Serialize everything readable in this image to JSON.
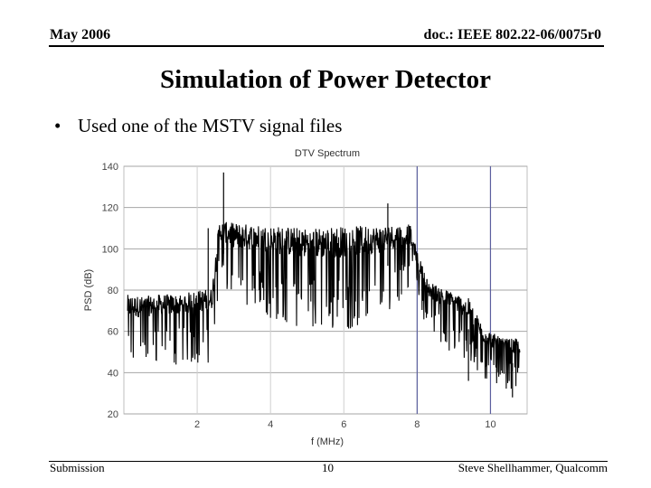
{
  "header": {
    "date": "May 2006",
    "doc_id": "doc.: IEEE 802.22-06/0075r0"
  },
  "title": "Simulation of Power Detector",
  "bullets": [
    "Used one of the MSTV signal files"
  ],
  "chart_data": {
    "type": "line",
    "title": "DTV Spectrum",
    "xlabel": "f (MHz)",
    "ylabel": "PSD (dB)",
    "xlim": [
      0,
      11
    ],
    "ylim": [
      20,
      140
    ],
    "xticks": [
      "2",
      "4",
      "6",
      "8",
      "10"
    ],
    "yticks": [
      "20",
      "40",
      "60",
      "80",
      "100",
      "120",
      "140"
    ],
    "grid": true,
    "highlight_vlines_x": [
      8,
      10
    ],
    "series": [
      {
        "color": "#000000",
        "envelope": [
          {
            "x": 0.1,
            "low": 40,
            "high": 80
          },
          {
            "x": 0.5,
            "low": 43,
            "high": 79
          },
          {
            "x": 1.0,
            "low": 44,
            "high": 80
          },
          {
            "x": 1.5,
            "low": 43,
            "high": 80
          },
          {
            "x": 2.0,
            "low": 44,
            "high": 82
          },
          {
            "x": 2.4,
            "low": 45,
            "high": 83
          },
          {
            "x": 2.5,
            "low": 60,
            "high": 100
          },
          {
            "x": 2.6,
            "low": 84,
            "high": 115
          },
          {
            "x": 3.0,
            "low": 72,
            "high": 115
          },
          {
            "x": 4.0,
            "low": 66,
            "high": 114
          },
          {
            "x": 5.0,
            "low": 60,
            "high": 113
          },
          {
            "x": 6.0,
            "low": 60,
            "high": 114
          },
          {
            "x": 7.0,
            "low": 66,
            "high": 114
          },
          {
            "x": 7.8,
            "low": 80,
            "high": 114
          },
          {
            "x": 8.0,
            "low": 78,
            "high": 100
          },
          {
            "x": 8.3,
            "low": 58,
            "high": 86
          },
          {
            "x": 8.8,
            "low": 50,
            "high": 82
          },
          {
            "x": 9.4,
            "low": 44,
            "high": 78
          },
          {
            "x": 9.8,
            "low": 36,
            "high": 64
          },
          {
            "x": 10.3,
            "low": 33,
            "high": 58
          },
          {
            "x": 10.8,
            "low": 30,
            "high": 58
          }
        ],
        "spikes": [
          {
            "x": 2.3,
            "y": 110
          },
          {
            "x": 2.72,
            "y": 137
          },
          {
            "x": 7.2,
            "y": 122
          },
          {
            "x": 9.4,
            "y": 36
          },
          {
            "x": 10.6,
            "y": 28
          }
        ]
      }
    ]
  },
  "footer": {
    "left": "Submission",
    "page": "10",
    "right": "Steve Shellhammer, Qualcomm"
  }
}
